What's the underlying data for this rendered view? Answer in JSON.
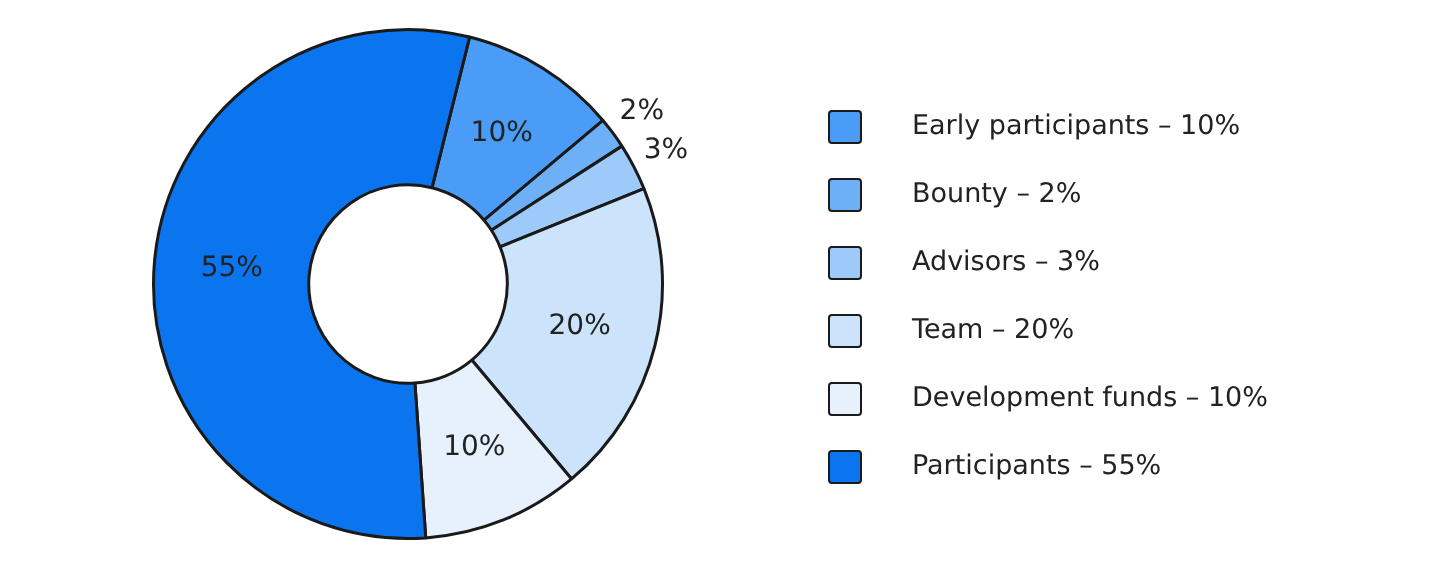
{
  "chart_data": {
    "type": "donut",
    "categories": [
      "Early participants – 10%",
      "Bounty – 2%",
      "Advisors – 3%",
      "Team – 20%",
      "Development funds – 10%",
      "Participants – 55%"
    ],
    "values": [
      10,
      2,
      3,
      20,
      10,
      55
    ],
    "value_labels": [
      "10%",
      "2%",
      "3%",
      "20%",
      "10%",
      "55%"
    ],
    "colors": [
      "#4a9cf7",
      "#6eb0f8",
      "#9ecaf9",
      "#cce3fc",
      "#e6f1fd",
      "#0b74ef"
    ],
    "legend": "right"
  }
}
